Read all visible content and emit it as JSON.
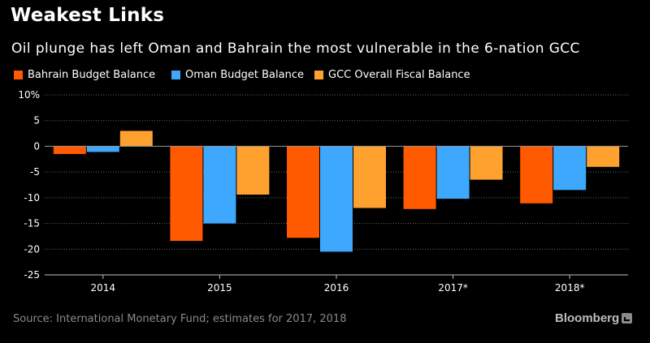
{
  "header": {
    "title": "Weakest Links",
    "subtitle": "Oil plunge has left Oman and Bahrain the most vulnerable in the 6-nation GCC"
  },
  "footer": {
    "source": "Source: International Monetary Fund; estimates for 2017, 2018",
    "brand": "Bloomberg"
  },
  "colors": {
    "bahrain": "#ff5a00",
    "oman": "#3ea8ff",
    "gcc": "#ffa12e",
    "axis": "#bfbfbf",
    "grid": "#6a6a6a"
  },
  "chart_data": {
    "type": "bar",
    "categories": [
      "2014",
      "2015",
      "2016",
      "2017*",
      "2018*"
    ],
    "series": [
      {
        "name": "Bahrain Budget Balance",
        "color": "#ff5a00",
        "values": [
          -1.5,
          -18.4,
          -17.8,
          -12.2,
          -11.1
        ]
      },
      {
        "name": "Oman Budget Balance",
        "color": "#3ea8ff",
        "values": [
          -1.1,
          -15.0,
          -20.5,
          -10.2,
          -8.5
        ]
      },
      {
        "name": "GCC Overall Fiscal Balance",
        "color": "#ffa12e",
        "values": [
          3.0,
          -9.4,
          -12.0,
          -6.5,
          -4.0
        ]
      }
    ],
    "ylim": [
      -25,
      10
    ],
    "yticks": [
      10,
      5,
      0,
      -5,
      -10,
      -15,
      -20,
      -25
    ],
    "ytick_labels": [
      "10%",
      "5",
      "0",
      "-5",
      "-10",
      "-15",
      "-20",
      "-25"
    ],
    "grid": true,
    "legend": "top-left",
    "xlabel": "",
    "ylabel": ""
  }
}
